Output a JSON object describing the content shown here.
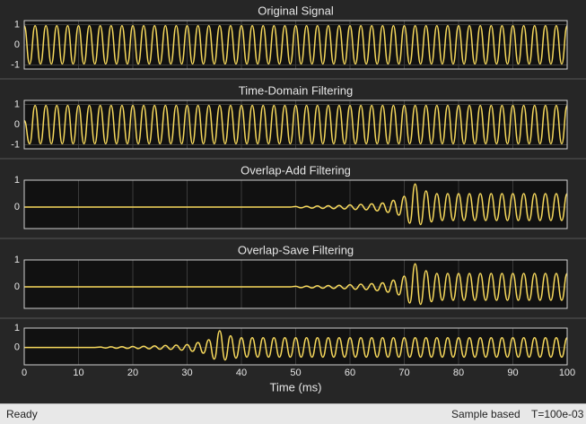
{
  "chart_data": [
    {
      "type": "line",
      "title": "Original Signal",
      "color": "#f7d95c",
      "ylim": [
        -1.2,
        1.2
      ],
      "yticks": [
        -1,
        0,
        1
      ],
      "grid": true,
      "x": [
        0,
        1,
        2,
        3,
        4,
        5,
        6,
        7,
        8,
        9,
        10,
        11,
        12,
        13,
        14,
        15,
        16,
        17,
        18,
        19,
        20,
        21,
        22,
        23,
        24,
        25,
        26,
        27,
        28,
        29,
        30,
        31,
        32,
        33,
        34,
        35,
        36,
        37,
        38,
        39,
        40,
        41,
        42,
        43,
        44,
        45,
        46,
        47,
        48,
        49,
        50,
        51,
        52,
        53,
        54,
        55,
        56,
        57,
        58,
        59,
        60,
        61,
        62,
        63,
        64,
        65,
        66,
        67,
        68,
        69,
        70,
        71,
        72,
        73,
        74,
        75,
        76,
        77,
        78,
        79,
        80,
        81,
        82,
        83,
        84,
        85,
        86,
        87,
        88,
        89,
        90,
        91,
        92,
        93,
        94,
        95,
        96,
        97,
        98,
        99,
        100
      ],
      "values": [
        0.95,
        -0.95,
        0.95,
        -0.95,
        0.95,
        -0.95,
        0.95,
        -0.95,
        0.95,
        -0.95,
        0.95,
        -0.95,
        0.95,
        -0.95,
        0.95,
        -0.95,
        0.95,
        -0.95,
        0.95,
        -0.95,
        0.95,
        -0.95,
        0.95,
        -0.95,
        0.95,
        -0.95,
        0.95,
        -0.95,
        0.95,
        -0.95,
        0.95,
        -0.95,
        0.95,
        -0.95,
        0.95,
        -0.95,
        0.95,
        -0.95,
        0.95,
        -0.95,
        0.95,
        -0.95,
        0.95,
        -0.95,
        0.95,
        -0.95,
        0.95,
        -0.95,
        0.95,
        -0.95,
        0.95,
        -0.95,
        0.95,
        -0.95,
        0.95,
        -0.95,
        0.95,
        -0.95,
        0.95,
        -0.95,
        0.95,
        -0.95,
        0.95,
        -0.95,
        0.95,
        -0.95,
        0.95,
        -0.95,
        0.95,
        -0.95,
        0.95,
        -0.95,
        0.95,
        -0.95,
        0.95,
        -0.95,
        0.95,
        -0.95,
        0.95,
        -0.95,
        0.95,
        -0.95,
        0.95,
        -0.95,
        0.95,
        -0.95,
        0.95,
        -0.95,
        0.95,
        -0.95,
        0.95,
        -0.95,
        0.95,
        -0.95,
        0.95,
        -0.95,
        0.95,
        -0.95,
        0.95,
        -0.95,
        0.95
      ]
    },
    {
      "type": "line",
      "title": "Time-Domain Filtering",
      "color": "#f7d95c",
      "ylim": [
        -1.2,
        1.2
      ],
      "yticks": [
        -1,
        0,
        1
      ],
      "grid": true,
      "x": [
        0,
        1,
        2,
        3,
        4,
        5,
        6,
        7,
        8,
        9,
        10,
        11,
        12,
        13,
        14,
        15,
        16,
        17,
        18,
        19,
        20,
        21,
        22,
        23,
        24,
        25,
        26,
        27,
        28,
        29,
        30,
        31,
        32,
        33,
        34,
        35,
        36,
        37,
        38,
        39,
        40,
        41,
        42,
        43,
        44,
        45,
        46,
        47,
        48,
        49,
        50,
        51,
        52,
        53,
        54,
        55,
        56,
        57,
        58,
        59,
        60,
        61,
        62,
        63,
        64,
        65,
        66,
        67,
        68,
        69,
        70,
        71,
        72,
        73,
        74,
        75,
        76,
        77,
        78,
        79,
        80,
        81,
        82,
        83,
        84,
        85,
        86,
        87,
        88,
        89,
        90,
        91,
        92,
        93,
        94,
        95,
        96,
        97,
        98,
        99,
        100
      ],
      "values": [
        0.2,
        -0.95,
        0.95,
        -0.95,
        0.95,
        -0.95,
        0.95,
        -0.95,
        0.95,
        -0.95,
        0.95,
        -0.95,
        0.95,
        -0.95,
        0.95,
        -0.95,
        0.95,
        -0.95,
        0.95,
        -0.95,
        0.95,
        -0.95,
        0.95,
        -0.95,
        0.95,
        -0.95,
        0.95,
        -0.95,
        0.95,
        -0.95,
        0.95,
        -0.95,
        0.95,
        -0.95,
        0.95,
        -0.95,
        0.95,
        -0.95,
        0.95,
        -0.95,
        0.95,
        -0.95,
        0.95,
        -0.95,
        0.95,
        -0.95,
        0.95,
        -0.95,
        0.95,
        -0.95,
        0.95,
        -0.95,
        0.95,
        -0.95,
        0.95,
        -0.95,
        0.95,
        -0.95,
        0.95,
        -0.95,
        0.95,
        -0.95,
        0.95,
        -0.95,
        0.95,
        -0.95,
        0.95,
        -0.95,
        0.95,
        -0.95,
        0.95,
        -0.95,
        0.95,
        -0.95,
        0.95,
        -0.95,
        0.95,
        -0.95,
        0.95,
        -0.95,
        0.95,
        -0.95,
        0.95,
        -0.95,
        0.95,
        -0.95,
        0.95,
        -0.95,
        0.95,
        -0.95,
        0.95,
        -0.95,
        0.95,
        -0.95,
        0.95,
        -0.95,
        0.95,
        -0.95,
        0.95,
        -0.95,
        0.95
      ]
    },
    {
      "type": "line",
      "title": "Overlap-Add Filtering",
      "color": "#f7d95c",
      "ylim": [
        -0.8,
        1
      ],
      "yticks": [
        0,
        1
      ],
      "grid": true,
      "x": [
        0,
        1,
        2,
        3,
        4,
        5,
        6,
        7,
        8,
        9,
        10,
        11,
        12,
        13,
        14,
        15,
        16,
        17,
        18,
        19,
        20,
        21,
        22,
        23,
        24,
        25,
        26,
        27,
        28,
        29,
        30,
        31,
        32,
        33,
        34,
        35,
        36,
        37,
        38,
        39,
        40,
        41,
        42,
        43,
        44,
        45,
        46,
        47,
        48,
        49,
        50,
        51,
        52,
        53,
        54,
        55,
        56,
        57,
        58,
        59,
        60,
        61,
        62,
        63,
        64,
        65,
        66,
        67,
        68,
        69,
        70,
        71,
        72,
        73,
        74,
        75,
        76,
        77,
        78,
        79,
        80,
        81,
        82,
        83,
        84,
        85,
        86,
        87,
        88,
        89,
        90,
        91,
        92,
        93,
        94,
        95,
        96,
        97,
        98,
        99,
        100
      ],
      "values": [
        0,
        0,
        0,
        0,
        0,
        0,
        0,
        0,
        0,
        0,
        0,
        0,
        0,
        0,
        0,
        0,
        0,
        0,
        0,
        0,
        0,
        0,
        0,
        0,
        0,
        0,
        0,
        0,
        0,
        0,
        0,
        0,
        0,
        0,
        0,
        0,
        0,
        0,
        0,
        0,
        0,
        0,
        0,
        0,
        0,
        0,
        0,
        0,
        0,
        0,
        0.02,
        -0.03,
        0.03,
        -0.04,
        0.04,
        -0.05,
        0.05,
        -0.06,
        0.06,
        -0.07,
        0.08,
        -0.09,
        0.1,
        -0.1,
        0.12,
        -0.14,
        0.15,
        -0.2,
        0.25,
        -0.3,
        0.4,
        -0.6,
        0.86,
        -0.65,
        0.6,
        -0.55,
        0.5,
        -0.5,
        0.5,
        -0.5,
        0.5,
        -0.5,
        0.5,
        -0.5,
        0.5,
        -0.5,
        0.5,
        -0.5,
        0.5,
        -0.5,
        0.5,
        -0.5,
        0.5,
        -0.5,
        0.5,
        -0.5,
        0.5,
        -0.5,
        0.5,
        -0.5,
        0.5
      ]
    },
    {
      "type": "line",
      "title": "Overlap-Save Filtering",
      "color": "#f7d95c",
      "ylim": [
        -0.8,
        1
      ],
      "yticks": [
        0,
        1
      ],
      "grid": true,
      "x": [
        0,
        1,
        2,
        3,
        4,
        5,
        6,
        7,
        8,
        9,
        10,
        11,
        12,
        13,
        14,
        15,
        16,
        17,
        18,
        19,
        20,
        21,
        22,
        23,
        24,
        25,
        26,
        27,
        28,
        29,
        30,
        31,
        32,
        33,
        34,
        35,
        36,
        37,
        38,
        39,
        40,
        41,
        42,
        43,
        44,
        45,
        46,
        47,
        48,
        49,
        50,
        51,
        52,
        53,
        54,
        55,
        56,
        57,
        58,
        59,
        60,
        61,
        62,
        63,
        64,
        65,
        66,
        67,
        68,
        69,
        70,
        71,
        72,
        73,
        74,
        75,
        76,
        77,
        78,
        79,
        80,
        81,
        82,
        83,
        84,
        85,
        86,
        87,
        88,
        89,
        90,
        91,
        92,
        93,
        94,
        95,
        96,
        97,
        98,
        99,
        100
      ],
      "values": [
        0,
        0,
        0,
        0,
        0,
        0,
        0,
        0,
        0,
        0,
        0,
        0,
        0,
        0,
        0,
        0,
        0,
        0,
        0,
        0,
        0,
        0,
        0,
        0,
        0,
        0,
        0,
        0,
        0,
        0,
        0,
        0,
        0,
        0,
        0,
        0,
        0,
        0,
        0,
        0,
        0,
        0,
        0,
        0,
        0,
        0,
        0,
        0,
        0,
        0,
        0.02,
        -0.03,
        0.03,
        -0.04,
        0.04,
        -0.05,
        0.05,
        -0.06,
        0.06,
        -0.07,
        0.08,
        -0.09,
        0.1,
        -0.1,
        0.12,
        -0.14,
        0.15,
        -0.2,
        0.25,
        -0.3,
        0.4,
        -0.6,
        0.86,
        -0.65,
        0.6,
        -0.55,
        0.5,
        -0.5,
        0.5,
        -0.5,
        0.5,
        -0.5,
        0.5,
        -0.5,
        0.5,
        -0.5,
        0.5,
        -0.5,
        0.5,
        -0.5,
        0.5,
        -0.5,
        0.5,
        -0.5,
        0.5,
        -0.5,
        0.5,
        -0.5,
        0.5,
        -0.5,
        0.5
      ]
    },
    {
      "type": "line",
      "xlabel": "Time (ms)",
      "color": "#f7d95c",
      "ylim": [
        -0.9,
        1
      ],
      "yticks": [
        0,
        1
      ],
      "grid": true,
      "xlim": [
        0,
        100
      ],
      "xticks": [
        0,
        10,
        20,
        30,
        40,
        50,
        60,
        70,
        80,
        90,
        100
      ],
      "x": [
        0,
        1,
        2,
        3,
        4,
        5,
        6,
        7,
        8,
        9,
        10,
        11,
        12,
        13,
        14,
        15,
        16,
        17,
        18,
        19,
        20,
        21,
        22,
        23,
        24,
        25,
        26,
        27,
        28,
        29,
        30,
        31,
        32,
        33,
        34,
        35,
        36,
        37,
        38,
        39,
        40,
        41,
        42,
        43,
        44,
        45,
        46,
        47,
        48,
        49,
        50,
        51,
        52,
        53,
        54,
        55,
        56,
        57,
        58,
        59,
        60,
        61,
        62,
        63,
        64,
        65,
        66,
        67,
        68,
        69,
        70,
        71,
        72,
        73,
        74,
        75,
        76,
        77,
        78,
        79,
        80,
        81,
        82,
        83,
        84,
        85,
        86,
        87,
        88,
        89,
        90,
        91,
        92,
        93,
        94,
        95,
        96,
        97,
        98,
        99,
        100
      ],
      "values": [
        0,
        0,
        0,
        0,
        0,
        0,
        0,
        0,
        0,
        0,
        0,
        0,
        0,
        0,
        0.02,
        -0.03,
        0.03,
        -0.04,
        0.04,
        -0.05,
        0.05,
        -0.06,
        0.06,
        -0.07,
        0.08,
        -0.09,
        0.1,
        -0.1,
        0.12,
        -0.14,
        0.15,
        -0.2,
        0.25,
        -0.3,
        0.4,
        -0.6,
        0.86,
        -0.65,
        0.6,
        -0.55,
        0.5,
        -0.5,
        0.5,
        -0.5,
        0.5,
        -0.5,
        0.5,
        -0.5,
        0.5,
        -0.5,
        0.5,
        -0.5,
        0.5,
        -0.5,
        0.5,
        -0.5,
        0.5,
        -0.5,
        0.5,
        -0.5,
        0.5,
        -0.5,
        0.5,
        -0.5,
        0.5,
        -0.5,
        0.5,
        -0.5,
        0.5,
        -0.5,
        0.5,
        -0.5,
        0.5,
        -0.5,
        0.5,
        -0.5,
        0.5,
        -0.5,
        0.5,
        -0.5,
        0.5,
        -0.5,
        0.5,
        -0.5,
        0.5,
        -0.5,
        0.5,
        -0.5,
        0.5,
        -0.5,
        0.5,
        -0.5,
        0.5,
        -0.5,
        0.5,
        -0.5,
        0.5,
        -0.5,
        0.5,
        -0.5,
        0.5
      ]
    }
  ],
  "status_bar": {
    "state": "Ready",
    "mode": "Sample based",
    "time": "T=100e-03"
  }
}
